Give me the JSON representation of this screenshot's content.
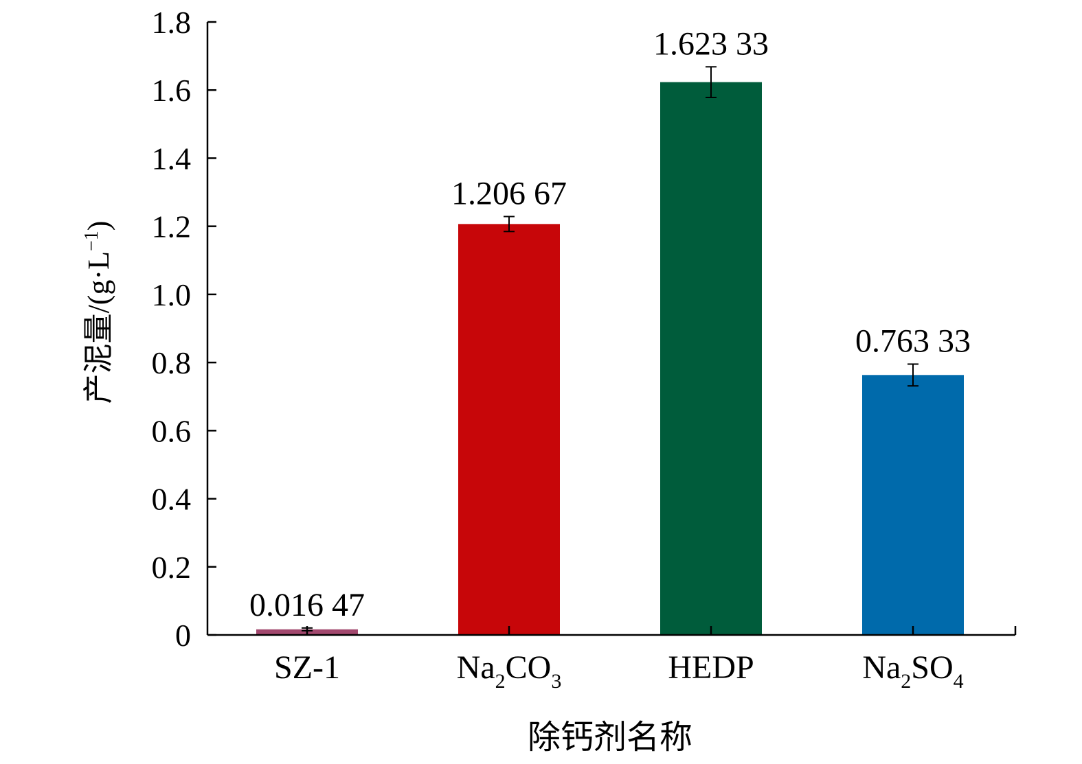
{
  "chart_data": {
    "type": "bar",
    "categories": [
      {
        "id": "SZ-1",
        "parts": [
          {
            "t": "SZ-1"
          }
        ]
      },
      {
        "id": "Na2CO3",
        "parts": [
          {
            "t": "Na"
          },
          {
            "t": "2",
            "sub": true
          },
          {
            "t": "CO"
          },
          {
            "t": "3",
            "sub": true
          }
        ]
      },
      {
        "id": "HEDP",
        "parts": [
          {
            "t": "HEDP"
          }
        ]
      },
      {
        "id": "Na2SO4",
        "parts": [
          {
            "t": "Na"
          },
          {
            "t": "2",
            "sub": true
          },
          {
            "t": "SO"
          },
          {
            "t": "4",
            "sub": true
          }
        ]
      }
    ],
    "values": [
      0.01647,
      1.20667,
      1.62333,
      0.76333
    ],
    "value_labels": [
      "0.016 47",
      "1.206 67",
      "1.623 33",
      "0.763 33"
    ],
    "errors": [
      0.004,
      0.022,
      0.045,
      0.032
    ],
    "colors": [
      "#a2486e",
      "#c70609",
      "#005c3b",
      "#006aab"
    ],
    "xlabel": "除钙剂名称",
    "ylabel": {
      "parts": [
        {
          "t": "产泥量/(g·L"
        },
        {
          "t": "−1",
          "sup": true
        },
        {
          "t": ")"
        }
      ]
    },
    "ylim": [
      0,
      1.8
    ],
    "yticks": [
      {
        "v": 0,
        "label": "0"
      },
      {
        "v": 0.2,
        "label": "0.2"
      },
      {
        "v": 0.4,
        "label": "0.4"
      },
      {
        "v": 0.6,
        "label": "0.6"
      },
      {
        "v": 0.8,
        "label": "0.8"
      },
      {
        "v": 1.0,
        "label": "1.0"
      },
      {
        "v": 1.2,
        "label": "1.2"
      },
      {
        "v": 1.4,
        "label": "1.4"
      },
      {
        "v": 1.6,
        "label": "1.6"
      },
      {
        "v": 1.8,
        "label": "1.8"
      }
    ],
    "grid": false,
    "legend": "none"
  }
}
